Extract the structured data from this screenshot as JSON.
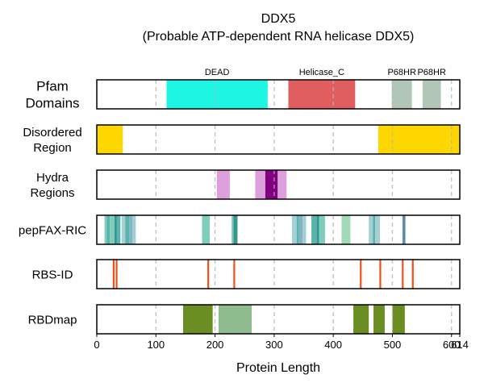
{
  "chart_data": {
    "type": "track",
    "title": "DDX5",
    "subtitle": "(Probable ATP-dependent RNA helicase DDX5)",
    "xlabel": "Protein Length",
    "xlim": [
      0,
      614
    ],
    "xticks": [
      0,
      100,
      200,
      300,
      400,
      500,
      600,
      614
    ],
    "grid_lines_x": [
      100,
      200,
      300,
      400,
      500,
      600
    ],
    "tracks": [
      {
        "label": [
          "Pfam",
          "Domains"
        ],
        "domains": [
          {
            "start": 118,
            "end": 289,
            "color": "#1ff5e3",
            "name": "DEAD"
          },
          {
            "start": 324,
            "end": 437,
            "color": "#e05e60",
            "name": "Helicase_C"
          },
          {
            "start": 499,
            "end": 533,
            "color": "#b2c6b8",
            "name": "P68HR"
          },
          {
            "start": 551,
            "end": 582,
            "color": "#b2c6b8",
            "name": "P68HR"
          }
        ]
      },
      {
        "label": [
          "Disordered",
          "Region"
        ],
        "domains": [
          {
            "start": 0,
            "end": 44,
            "color": "#ffd700"
          },
          {
            "start": 476,
            "end": 614,
            "color": "#ffd700"
          }
        ]
      },
      {
        "label": [
          "Hydra",
          "Regions"
        ],
        "domains": [
          {
            "start": 203,
            "end": 225,
            "color": "#dda0dd"
          },
          {
            "start": 268,
            "end": 285,
            "color": "#dda0dd"
          },
          {
            "start": 285,
            "end": 306,
            "color": "#800080"
          },
          {
            "start": 306,
            "end": 321,
            "color": "#dda0dd"
          }
        ]
      },
      {
        "label": [
          "pepFAX-RIC"
        ],
        "domains": [
          {
            "start": 13,
            "end": 17,
            "color": "#7fcdbb"
          },
          {
            "start": 17,
            "end": 22,
            "color": "#5ab4ac"
          },
          {
            "start": 22,
            "end": 30,
            "color": "#7fcdbb"
          },
          {
            "start": 30,
            "end": 34,
            "color": "#35978f"
          },
          {
            "start": 34,
            "end": 40,
            "color": "#5ab4ac"
          },
          {
            "start": 42,
            "end": 48,
            "color": "#a6cfd5"
          },
          {
            "start": 48,
            "end": 55,
            "color": "#5ab4ac"
          },
          {
            "start": 55,
            "end": 60,
            "color": "#7fb6c2"
          },
          {
            "start": 60,
            "end": 66,
            "color": "#a6cfd5"
          },
          {
            "start": 178,
            "end": 191,
            "color": "#7fcdbb"
          },
          {
            "start": 228,
            "end": 231,
            "color": "#7fcdbb"
          },
          {
            "start": 231,
            "end": 238,
            "color": "#35978f"
          },
          {
            "start": 330,
            "end": 338,
            "color": "#a6cfd5"
          },
          {
            "start": 338,
            "end": 342,
            "color": "#5ab4ac"
          },
          {
            "start": 342,
            "end": 348,
            "color": "#7fb6c2"
          },
          {
            "start": 348,
            "end": 354,
            "color": "#a6cfd5"
          },
          {
            "start": 363,
            "end": 372,
            "color": "#5ab4ac"
          },
          {
            "start": 372,
            "end": 376,
            "color": "#35978f"
          },
          {
            "start": 376,
            "end": 386,
            "color": "#7fcdbb"
          },
          {
            "start": 414,
            "end": 429,
            "color": "#a1dab4"
          },
          {
            "start": 460,
            "end": 467,
            "color": "#a6cfd5"
          },
          {
            "start": 467,
            "end": 471,
            "color": "#5ab4ac"
          },
          {
            "start": 471,
            "end": 479,
            "color": "#a6cfd5"
          },
          {
            "start": 517,
            "end": 522,
            "color": "#5b8fa8"
          }
        ]
      },
      {
        "label": [
          "RBS-ID"
        ],
        "domains": [
          {
            "start": 27,
            "end": 30,
            "color": "#f04e1a"
          },
          {
            "start": 32,
            "end": 35,
            "color": "#f04e1a"
          },
          {
            "start": 187,
            "end": 190,
            "color": "#f04e1a"
          },
          {
            "start": 231,
            "end": 234,
            "color": "#f04e1a"
          },
          {
            "start": 445,
            "end": 448,
            "color": "#f04e1a"
          },
          {
            "start": 478,
            "end": 481,
            "color": "#f04e1a"
          },
          {
            "start": 516,
            "end": 519,
            "color": "#f04e1a"
          },
          {
            "start": 533,
            "end": 536,
            "color": "#f04e1a"
          }
        ]
      },
      {
        "label": [
          "RBDmap"
        ],
        "domains": [
          {
            "start": 146,
            "end": 196,
            "color": "#6b8e23"
          },
          {
            "start": 206,
            "end": 262,
            "color": "#8fbc8f"
          },
          {
            "start": 434,
            "end": 460,
            "color": "#6b8e23"
          },
          {
            "start": 468,
            "end": 487,
            "color": "#6b8e23"
          },
          {
            "start": 500,
            "end": 521,
            "color": "#6b8e23"
          }
        ]
      }
    ]
  }
}
